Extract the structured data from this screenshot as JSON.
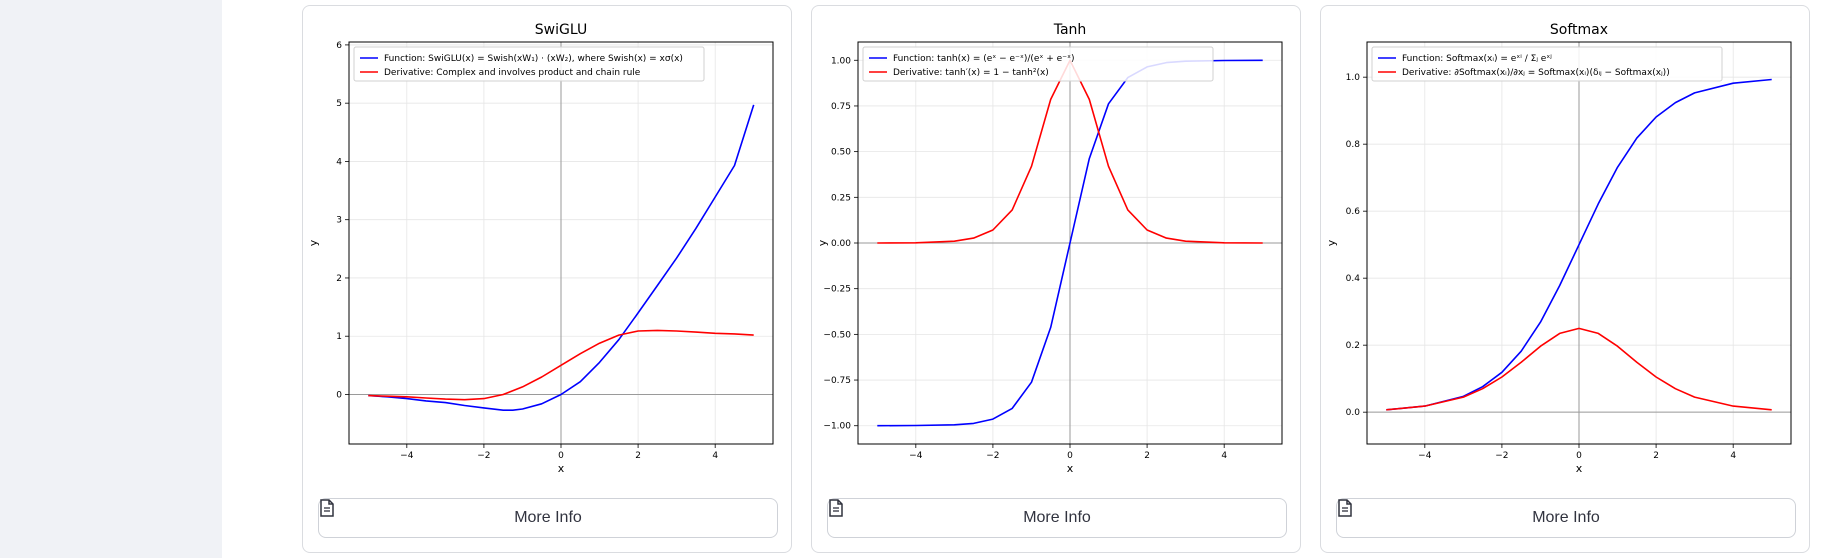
{
  "sidebar": {},
  "cards": [
    {
      "button_label": "More Info",
      "chart": {
        "type": "line",
        "title": "SwiGLU",
        "xlabel": "x",
        "ylabel": "y",
        "xlim": [
          -5.5,
          5.5
        ],
        "ylim": [
          -0.85,
          6.05
        ],
        "xticks": [
          -4,
          -2,
          0,
          2,
          4
        ],
        "yticks": [
          0,
          1,
          2,
          3,
          4,
          5,
          6
        ],
        "ytick_labels": [
          "0",
          "1",
          "2",
          "3",
          "4",
          "5",
          "6"
        ],
        "grid": true,
        "legend": "top-left",
        "series": [
          {
            "name": "Function: SwiGLU(x) = Swish(xW₁) · (xW₂), where Swish(x) = xσ(x)",
            "color": "#0000ff",
            "points": [
              [
                -5,
                -0.02
              ],
              [
                -4.5,
                -0.04
              ],
              [
                -4,
                -0.07
              ],
              [
                -3.5,
                -0.11
              ],
              [
                -3,
                -0.14
              ],
              [
                -2.5,
                -0.19
              ],
              [
                -2,
                -0.23
              ],
              [
                -1.5,
                -0.27
              ],
              [
                -1.25,
                -0.27
              ],
              [
                -1,
                -0.25
              ],
              [
                -0.5,
                -0.16
              ],
              [
                0,
                0.0
              ],
              [
                0.5,
                0.22
              ],
              [
                1,
                0.55
              ],
              [
                1.5,
                0.94
              ],
              [
                2,
                1.4
              ],
              [
                2.5,
                1.87
              ],
              [
                3,
                2.34
              ],
              [
                3.5,
                2.85
              ],
              [
                4,
                3.39
              ],
              [
                4.5,
                3.93
              ],
              [
                5,
                4.97
              ]
            ]
          },
          {
            "name": "Derivative: Complex and involves product and chain rule",
            "color": "#ff0000",
            "points": [
              [
                -5,
                -0.02
              ],
              [
                -4.5,
                -0.03
              ],
              [
                -4,
                -0.04
              ],
              [
                -3.5,
                -0.06
              ],
              [
                -3,
                -0.08
              ],
              [
                -2.5,
                -0.09
              ],
              [
                -2,
                -0.07
              ],
              [
                -1.5,
                0.0
              ],
              [
                -1,
                0.13
              ],
              [
                -0.5,
                0.3
              ],
              [
                0,
                0.5
              ],
              [
                0.5,
                0.7
              ],
              [
                1,
                0.88
              ],
              [
                1.5,
                1.02
              ],
              [
                2,
                1.09
              ],
              [
                2.5,
                1.1
              ],
              [
                3,
                1.09
              ],
              [
                3.5,
                1.07
              ],
              [
                4,
                1.05
              ],
              [
                4.5,
                1.04
              ],
              [
                5,
                1.02
              ]
            ]
          }
        ]
      }
    },
    {
      "button_label": "More Info",
      "chart": {
        "type": "line",
        "title": "Tanh",
        "xlabel": "x",
        "ylabel": "y",
        "xlim": [
          -5.5,
          5.5
        ],
        "ylim": [
          -1.1,
          1.1
        ],
        "xticks": [
          -4,
          -2,
          0,
          2,
          4
        ],
        "yticks": [
          -1,
          -0.75,
          -0.5,
          -0.25,
          0,
          0.25,
          0.5,
          0.75,
          1
        ],
        "ytick_labels": [
          "−1.00",
          "−0.75",
          "−0.50",
          "−0.25",
          "0.00",
          "0.25",
          "0.50",
          "0.75",
          "1.00"
        ],
        "grid": true,
        "legend": "top-left",
        "series": [
          {
            "name": "Function: tanh(x) = (eˣ − e⁻ˣ)/(eˣ + e⁻ˣ)",
            "color": "#0000ff",
            "points": [
              [
                -5,
                -1.0
              ],
              [
                -4,
                -0.999
              ],
              [
                -3,
                -0.995
              ],
              [
                -2.5,
                -0.987
              ],
              [
                -2,
                -0.964
              ],
              [
                -1.5,
                -0.905
              ],
              [
                -1,
                -0.762
              ],
              [
                -0.5,
                -0.462
              ],
              [
                0,
                0.0
              ],
              [
                0.5,
                0.462
              ],
              [
                1,
                0.762
              ],
              [
                1.5,
                0.905
              ],
              [
                2,
                0.964
              ],
              [
                2.5,
                0.987
              ],
              [
                3,
                0.995
              ],
              [
                4,
                0.999
              ],
              [
                5,
                1.0
              ]
            ]
          },
          {
            "name": "Derivative: tanh′(x) = 1 − tanh²(x)",
            "color": "#ff0000",
            "points": [
              [
                -5,
                0.0
              ],
              [
                -4,
                0.001
              ],
              [
                -3,
                0.01
              ],
              [
                -2.5,
                0.027
              ],
              [
                -2,
                0.071
              ],
              [
                -1.5,
                0.181
              ],
              [
                -1,
                0.42
              ],
              [
                -0.5,
                0.786
              ],
              [
                0,
                1.0
              ],
              [
                0.5,
                0.786
              ],
              [
                1,
                0.42
              ],
              [
                1.5,
                0.181
              ],
              [
                2,
                0.071
              ],
              [
                2.5,
                0.027
              ],
              [
                3,
                0.01
              ],
              [
                4,
                0.001
              ],
              [
                5,
                0.0
              ]
            ]
          }
        ]
      }
    },
    {
      "button_label": "More Info",
      "chart": {
        "type": "line",
        "title": "Softmax",
        "xlabel": "x",
        "ylabel": "y",
        "xlim": [
          -5.5,
          5.5
        ],
        "ylim": [
          -0.095,
          1.105
        ],
        "xticks": [
          -4,
          -2,
          0,
          2,
          4
        ],
        "yticks": [
          0,
          0.2,
          0.4,
          0.6,
          0.8,
          1.0
        ],
        "ytick_labels": [
          "0.0",
          "0.2",
          "0.4",
          "0.6",
          "0.8",
          "1.0"
        ],
        "grid": true,
        "legend": "top-left",
        "series": [
          {
            "name": "Function: Softmax(xᵢ) = eˣⁱ / Σⱼ eˣʲ",
            "color": "#0000ff",
            "points": [
              [
                -5,
                0.007
              ],
              [
                -4,
                0.018
              ],
              [
                -3,
                0.047
              ],
              [
                -2.5,
                0.076
              ],
              [
                -2,
                0.119
              ],
              [
                -1.5,
                0.182
              ],
              [
                -1,
                0.269
              ],
              [
                -0.5,
                0.378
              ],
              [
                0,
                0.5
              ],
              [
                0.5,
                0.622
              ],
              [
                1,
                0.731
              ],
              [
                1.5,
                0.818
              ],
              [
                2,
                0.881
              ],
              [
                2.5,
                0.924
              ],
              [
                3,
                0.953
              ],
              [
                4,
                0.982
              ],
              [
                5,
                0.993
              ]
            ]
          },
          {
            "name": "Derivative: ∂Softmax(xᵢ)/∂xⱼ = Softmax(xᵢ)(δᵢⱼ − Softmax(xⱼ))",
            "color": "#ff0000",
            "points": [
              [
                -5,
                0.007
              ],
              [
                -4,
                0.018
              ],
              [
                -3,
                0.045
              ],
              [
                -2.5,
                0.07
              ],
              [
                -2,
                0.105
              ],
              [
                -1.5,
                0.149
              ],
              [
                -1,
                0.197
              ],
              [
                -0.5,
                0.235
              ],
              [
                0,
                0.25
              ],
              [
                0.5,
                0.235
              ],
              [
                1,
                0.197
              ],
              [
                1.5,
                0.149
              ],
              [
                2,
                0.105
              ],
              [
                2.5,
                0.07
              ],
              [
                3,
                0.045
              ],
              [
                4,
                0.018
              ],
              [
                5,
                0.007
              ]
            ]
          }
        ]
      }
    }
  ]
}
